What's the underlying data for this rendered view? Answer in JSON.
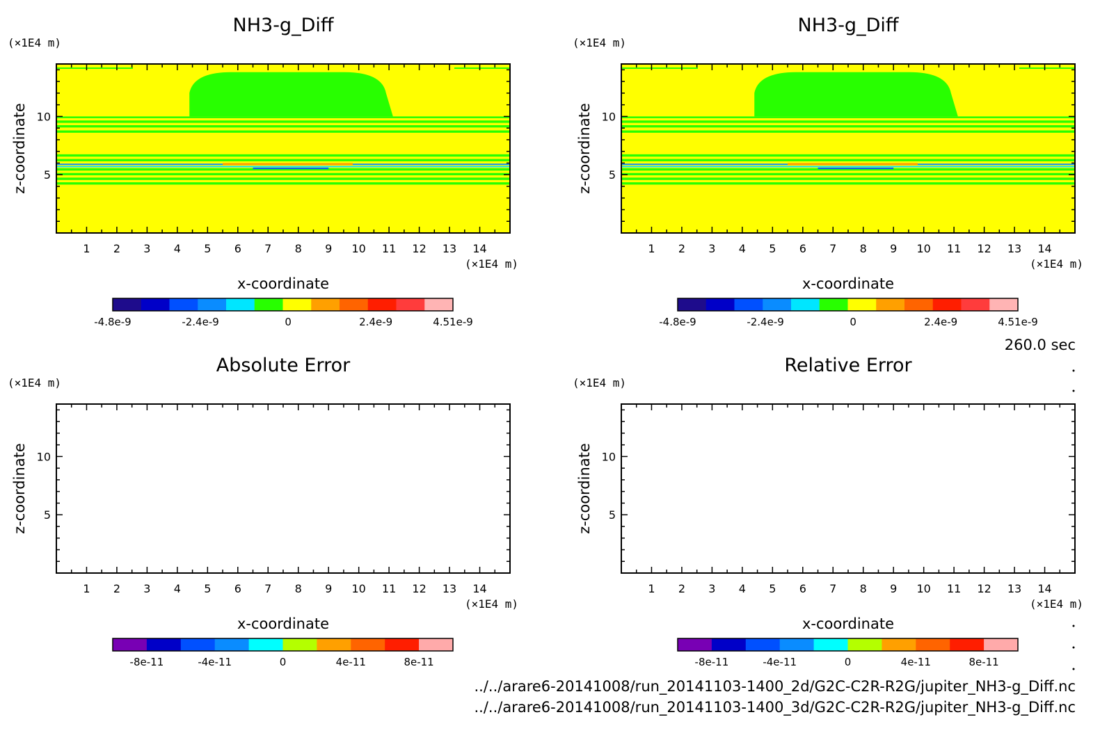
{
  "time_label": "260.0 sec",
  "footer_paths": [
    "../../arare6-20141008/run_20141103-1400_2d/G2C-C2R-R2G/jupiter_NH3-g_Diff.nc",
    "../../arare6-20141008/run_20141103-1400_3d/G2C-C2R-R2G/jupiter_NH3-g_Diff.nc"
  ],
  "chart_data": [
    {
      "id": "top-left",
      "type": "heatmap",
      "title": "NH3-g_Diff",
      "xlabel": "x-coordinate",
      "ylabel": "z-coordinate",
      "x_unit": "(×1E4 m)",
      "y_unit": "(×1E4 m)",
      "xlim": [
        0,
        15
      ],
      "ylim": [
        0,
        14.5
      ],
      "x_ticks": [
        1,
        2,
        3,
        4,
        5,
        6,
        7,
        8,
        9,
        10,
        11,
        12,
        13,
        14
      ],
      "y_ticks": [
        5,
        10
      ],
      "filled": true,
      "colorbar": {
        "colors": [
          "#1e0c8c",
          "#0000c8",
          "#0050ff",
          "#0a8cff",
          "#00e6ff",
          "#28ff00",
          "#ffff00",
          "#ffa000",
          "#ff6400",
          "#ff1e00",
          "#ff3c3c",
          "#ffb4b4"
        ],
        "tick_labels": [
          "-4.8e-9",
          "-2.4e-9",
          "0",
          "2.4e-9",
          "4.51e-9"
        ],
        "range": [
          -4.8e-09,
          4.51e-09
        ]
      }
    },
    {
      "id": "top-right",
      "type": "heatmap",
      "title": "NH3-g_Diff",
      "xlabel": "x-coordinate",
      "ylabel": "z-coordinate",
      "x_unit": "(×1E4 m)",
      "y_unit": "(×1E4 m)",
      "xlim": [
        0,
        15
      ],
      "ylim": [
        0,
        14.5
      ],
      "x_ticks": [
        1,
        2,
        3,
        4,
        5,
        6,
        7,
        8,
        9,
        10,
        11,
        12,
        13,
        14
      ],
      "y_ticks": [
        5,
        10
      ],
      "filled": true,
      "colorbar": {
        "colors": [
          "#1e0c8c",
          "#0000c8",
          "#0050ff",
          "#0a8cff",
          "#00e6ff",
          "#28ff00",
          "#ffff00",
          "#ffa000",
          "#ff6400",
          "#ff1e00",
          "#ff3c3c",
          "#ffb4b4"
        ],
        "tick_labels": [
          "-4.8e-9",
          "-2.4e-9",
          "0",
          "2.4e-9",
          "4.51e-9"
        ],
        "range": [
          -4.8e-09,
          4.51e-09
        ]
      }
    },
    {
      "id": "bottom-left",
      "type": "heatmap",
      "title": "Absolute Error",
      "xlabel": "x-coordinate",
      "ylabel": "z-coordinate",
      "x_unit": "(×1E4 m)",
      "y_unit": "(×1E4 m)",
      "xlim": [
        0,
        15
      ],
      "ylim": [
        0,
        14.5
      ],
      "x_ticks": [
        1,
        2,
        3,
        4,
        5,
        6,
        7,
        8,
        9,
        10,
        11,
        12,
        13,
        14
      ],
      "y_ticks": [
        5,
        10
      ],
      "filled": false,
      "colorbar": {
        "colors": [
          "#7800b4",
          "#0000c8",
          "#0050ff",
          "#0a8cff",
          "#00ffff",
          "#b4ff00",
          "#ffa000",
          "#ff6400",
          "#ff1e00",
          "#ffaaaa"
        ],
        "tick_labels": [
          "-8e-11",
          "-4e-11",
          "0",
          "4e-11",
          "8e-11"
        ],
        "range": [
          -1e-10,
          1e-10
        ]
      }
    },
    {
      "id": "bottom-right",
      "type": "heatmap",
      "title": "Relative Error",
      "xlabel": "x-coordinate",
      "ylabel": "z-coordinate",
      "x_unit": "(×1E4 m)",
      "y_unit": "(×1E4 m)",
      "xlim": [
        0,
        15
      ],
      "ylim": [
        0,
        14.5
      ],
      "x_ticks": [
        1,
        2,
        3,
        4,
        5,
        6,
        7,
        8,
        9,
        10,
        11,
        12,
        13,
        14
      ],
      "y_ticks": [
        5,
        10
      ],
      "filled": false,
      "colorbar": {
        "colors": [
          "#7800b4",
          "#0000c8",
          "#0050ff",
          "#0a8cff",
          "#00ffff",
          "#b4ff00",
          "#ffa000",
          "#ff6400",
          "#ff1e00",
          "#ffaaaa"
        ],
        "tick_labels": [
          "-8e-11",
          "-4e-11",
          "0",
          "4e-11",
          "8e-11"
        ],
        "range": [
          -1e-10,
          1e-10
        ]
      }
    }
  ]
}
